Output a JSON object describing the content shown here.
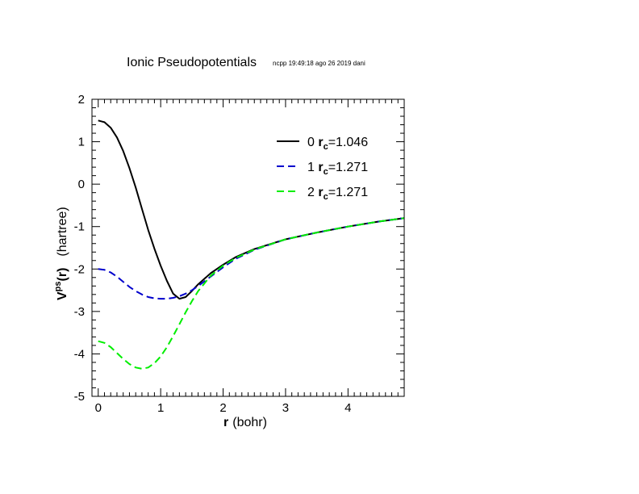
{
  "chart_data": {
    "type": "line",
    "title": "Ionic Pseudopotentials",
    "subtitle": "ncpp 19:49:18 ago 26 2019 dani",
    "xlabel": {
      "symbol": "r",
      "unit": "(bohr)"
    },
    "ylabel": {
      "symbol": "V",
      "superscript": "ps",
      "arg": "(r)",
      "unit": "(hartree)"
    },
    "xlim": [
      -0.1,
      4.9
    ],
    "ylim": [
      -5,
      2
    ],
    "xticks": [
      "0",
      "1",
      "2",
      "3",
      "4"
    ],
    "yticks": [
      "2",
      "1",
      "0",
      "-1",
      "-2",
      "-3",
      "-4",
      "-5"
    ],
    "legend_position": "top-right",
    "series": [
      {
        "name": "0",
        "legend_prefix": "0",
        "legend_symbol": "r",
        "legend_subscript": "c",
        "legend_value": "=1.046",
        "color": "#000000",
        "style": "solid",
        "x": [
          0.0,
          0.1,
          0.2,
          0.3,
          0.4,
          0.5,
          0.6,
          0.7,
          0.8,
          0.9,
          1.0,
          1.1,
          1.2,
          1.3,
          1.4,
          1.5,
          1.6,
          1.8,
          2.0,
          2.2,
          2.5,
          3.0,
          3.5,
          4.0,
          4.5,
          4.9
        ],
        "y": [
          1.5,
          1.46,
          1.33,
          1.1,
          0.78,
          0.38,
          -0.08,
          -0.58,
          -1.08,
          -1.52,
          -1.92,
          -2.28,
          -2.58,
          -2.7,
          -2.66,
          -2.52,
          -2.36,
          -2.1,
          -1.9,
          -1.72,
          -1.53,
          -1.3,
          -1.14,
          -1.0,
          -0.88,
          -0.8
        ]
      },
      {
        "name": "1",
        "legend_prefix": "1",
        "legend_symbol": "r",
        "legend_subscript": "c",
        "legend_value": "=1.271",
        "color": "#0000cc",
        "style": "dashed",
        "x": [
          0.0,
          0.1,
          0.2,
          0.3,
          0.4,
          0.5,
          0.6,
          0.7,
          0.8,
          0.9,
          1.0,
          1.1,
          1.2,
          1.3,
          1.4,
          1.5,
          1.6,
          1.8,
          2.0,
          2.2,
          2.5,
          3.0,
          3.5,
          4.0,
          4.5,
          4.9
        ],
        "y": [
          -2.0,
          -2.02,
          -2.08,
          -2.18,
          -2.3,
          -2.42,
          -2.52,
          -2.6,
          -2.66,
          -2.69,
          -2.7,
          -2.7,
          -2.68,
          -2.64,
          -2.58,
          -2.5,
          -2.4,
          -2.18,
          -1.96,
          -1.76,
          -1.55,
          -1.3,
          -1.14,
          -1.0,
          -0.88,
          -0.8
        ]
      },
      {
        "name": "2",
        "legend_prefix": "2",
        "legend_symbol": "r",
        "legend_subscript": "c",
        "legend_value": "=1.271",
        "color": "#00ee00",
        "style": "dashed",
        "x": [
          0.0,
          0.1,
          0.2,
          0.3,
          0.4,
          0.5,
          0.6,
          0.7,
          0.8,
          0.9,
          1.0,
          1.1,
          1.2,
          1.3,
          1.4,
          1.5,
          1.6,
          1.8,
          2.0,
          2.2,
          2.5,
          3.0,
          3.5,
          4.0,
          4.5,
          4.9
        ],
        "y": [
          -3.7,
          -3.74,
          -3.84,
          -3.98,
          -4.12,
          -4.24,
          -4.32,
          -4.35,
          -4.32,
          -4.22,
          -4.06,
          -3.84,
          -3.58,
          -3.3,
          -3.02,
          -2.76,
          -2.52,
          -2.16,
          -1.92,
          -1.74,
          -1.54,
          -1.3,
          -1.14,
          -1.0,
          -0.88,
          -0.8
        ]
      }
    ]
  }
}
